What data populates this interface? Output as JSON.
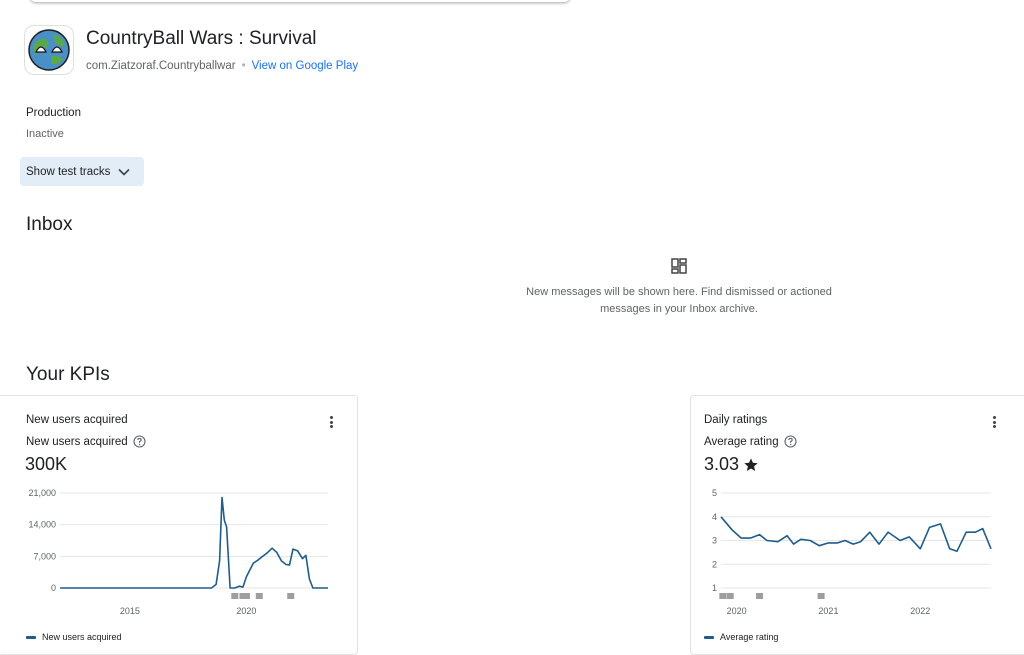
{
  "app": {
    "title": "CountryBall Wars : Survival",
    "package": "com.Ziatzoraf.Countryballwar",
    "store_link": "View on Google Play",
    "icon": "countryball-app-icon"
  },
  "production": {
    "label": "Production",
    "status": "Inactive",
    "test_tracks_button": "Show test tracks"
  },
  "inbox": {
    "title": "Inbox",
    "empty_message": "New messages will be shown here. Find dismissed or actioned messages in your Inbox archive.",
    "icon": "inbox-dashboard-icon"
  },
  "kpis": {
    "title": "Your KPIs",
    "cards": [
      {
        "title": "New users acquired",
        "metric_label": "New users acquired",
        "value": "300K",
        "legend": "New users acquired",
        "color": "#1f5c8c",
        "chart_data": {
          "type": "line",
          "ylim": [
            0,
            21000
          ],
          "yticks": [
            "21,000",
            "14,000",
            "7,000",
            "0"
          ],
          "ytick_values": [
            21000,
            14000,
            7000,
            0
          ],
          "xticks": [
            "2015",
            "2020"
          ],
          "xtick_values": [
            2015,
            2020
          ],
          "xlim": [
            2012.0,
            2023.5
          ],
          "series": [
            {
              "name": "New users acquired",
              "x": [
                2012.0,
                2018.5,
                2018.7,
                2018.85,
                2018.95,
                2019.05,
                2019.15,
                2019.3,
                2019.5,
                2019.7,
                2019.85,
                2020.0,
                2020.15,
                2020.3,
                2020.5,
                2020.7,
                2020.9,
                2021.1,
                2021.3,
                2021.5,
                2021.7,
                2021.85,
                2022.0,
                2022.2,
                2022.4,
                2022.55,
                2022.7,
                2022.85,
                2023.0,
                2023.5
              ],
              "y": [
                0,
                0,
                800,
                6000,
                20000,
                15000,
                13500,
                0,
                0,
                400,
                200,
                2500,
                4000,
                5500,
                6200,
                7000,
                7800,
                8800,
                7900,
                6000,
                5200,
                5100,
                8600,
                8200,
                6500,
                7200,
                2000,
                0,
                0,
                0
              ]
            }
          ],
          "annotation_markers_x": [
            2019.5,
            2019.85,
            2020.0,
            2020.55,
            2021.9
          ]
        }
      },
      {
        "title": "Daily ratings",
        "metric_label": "Average rating",
        "value": "3.03",
        "legend": "Average rating",
        "color": "#1f5c8c",
        "chart_data": {
          "type": "line",
          "ylim": [
            1,
            5
          ],
          "yticks": [
            "5",
            "4",
            "3",
            "2",
            "1"
          ],
          "ytick_values": [
            5,
            4,
            3,
            2,
            1
          ],
          "xticks": [
            "2020",
            "2021",
            "2022"
          ],
          "xtick_values": [
            2020,
            2021,
            2022
          ],
          "xlim": [
            2019.83,
            2022.77
          ],
          "series": [
            {
              "name": "Average rating",
              "x": [
                2019.83,
                2019.95,
                2020.05,
                2020.15,
                2020.25,
                2020.33,
                2020.45,
                2020.55,
                2020.62,
                2020.7,
                2020.8,
                2020.9,
                2021.0,
                2021.1,
                2021.18,
                2021.27,
                2021.35,
                2021.45,
                2021.55,
                2021.65,
                2021.78,
                2021.88,
                2022.0,
                2022.1,
                2022.22,
                2022.32,
                2022.4,
                2022.5,
                2022.6,
                2022.68,
                2022.77
              ],
              "y": [
                4.0,
                3.45,
                3.1,
                3.1,
                3.25,
                3.0,
                2.95,
                3.2,
                2.85,
                3.05,
                3.0,
                2.78,
                2.9,
                2.9,
                3.0,
                2.85,
                2.95,
                3.35,
                2.85,
                3.35,
                3.0,
                3.15,
                2.65,
                3.55,
                3.7,
                2.65,
                2.55,
                3.35,
                3.35,
                3.5,
                2.65
              ]
            }
          ],
          "annotation_markers_x": [
            2019.85,
            2019.93,
            2020.25,
            2020.92
          ]
        }
      }
    ]
  }
}
